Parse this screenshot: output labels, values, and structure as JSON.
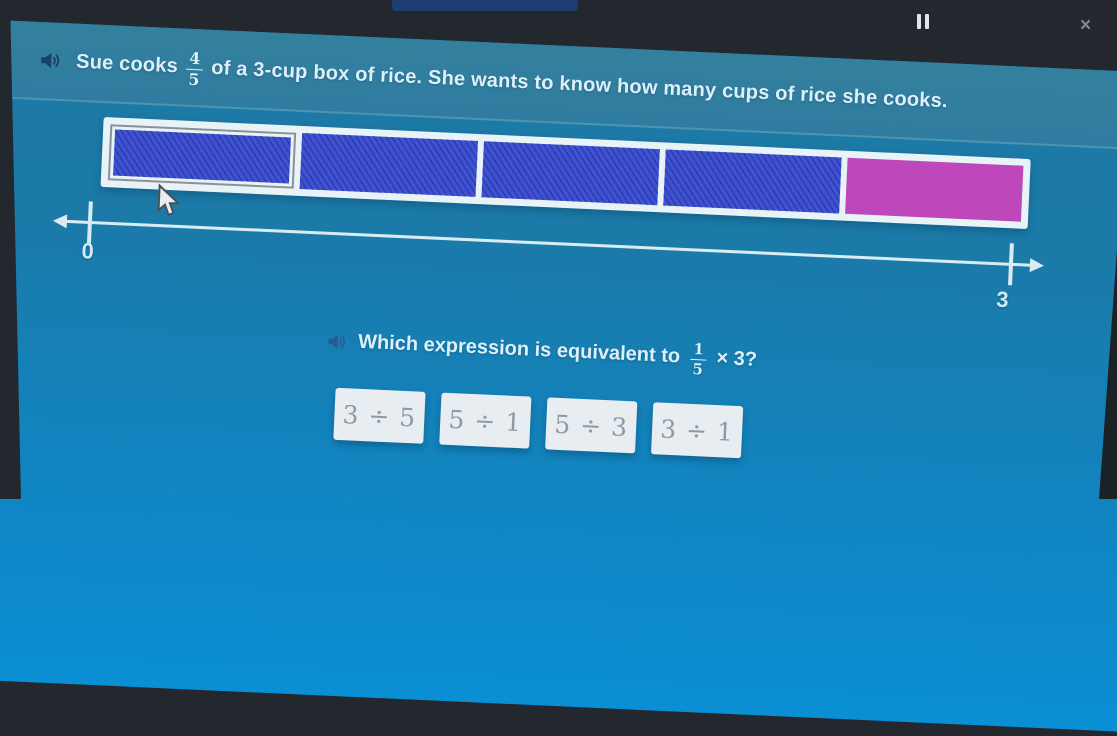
{
  "window": {
    "pause_icon": "pause",
    "close_icon": "×"
  },
  "header": {
    "speaker_icon": "speaker",
    "text_before_fraction": "Sue cooks",
    "fraction": {
      "numerator": "4",
      "denominator": "5"
    },
    "text_after_fraction": "of a 3-cup box of rice. She wants to know how many cups of rice she cooks."
  },
  "bar_model": {
    "segments": [
      {
        "color": "blue",
        "hatched": true,
        "highlighted": true
      },
      {
        "color": "blue",
        "hatched": true,
        "highlighted": false
      },
      {
        "color": "blue",
        "hatched": true,
        "highlighted": false
      },
      {
        "color": "blue",
        "hatched": true,
        "highlighted": false
      },
      {
        "color": "magenta",
        "hatched": false,
        "highlighted": false
      }
    ]
  },
  "number_line": {
    "start_label": "0",
    "end_label": "3"
  },
  "question": {
    "speaker_icon": "speaker",
    "text_before_fraction": "Which expression is equivalent to",
    "fraction": {
      "numerator": "1",
      "denominator": "5"
    },
    "text_after_fraction": "× 3?"
  },
  "answers": [
    {
      "label": "3 ÷ 5"
    },
    {
      "label": "5 ÷ 1"
    },
    {
      "label": "5 ÷ 3"
    },
    {
      "label": "3 ÷ 1"
    }
  ],
  "colors": {
    "bezel": "#23272e",
    "header_bg": "#2f7ca0",
    "body_top": "#1e78a4",
    "body_bottom": "#0a8ed4",
    "bar_frame": "#e8f3f8",
    "segment_blue": "#4052cf",
    "segment_hatch": "#2c3eb5",
    "segment_magenta": "#bd47bb",
    "segment_selected_border": "#8b9199",
    "number_line": "#d9ecf4",
    "text_light": "#ddf0f9",
    "speaker_icon": "#1c3f66",
    "button_bg": "#e7edf0",
    "button_text": "#8d99a3",
    "title_strip": "#1d3e70"
  }
}
